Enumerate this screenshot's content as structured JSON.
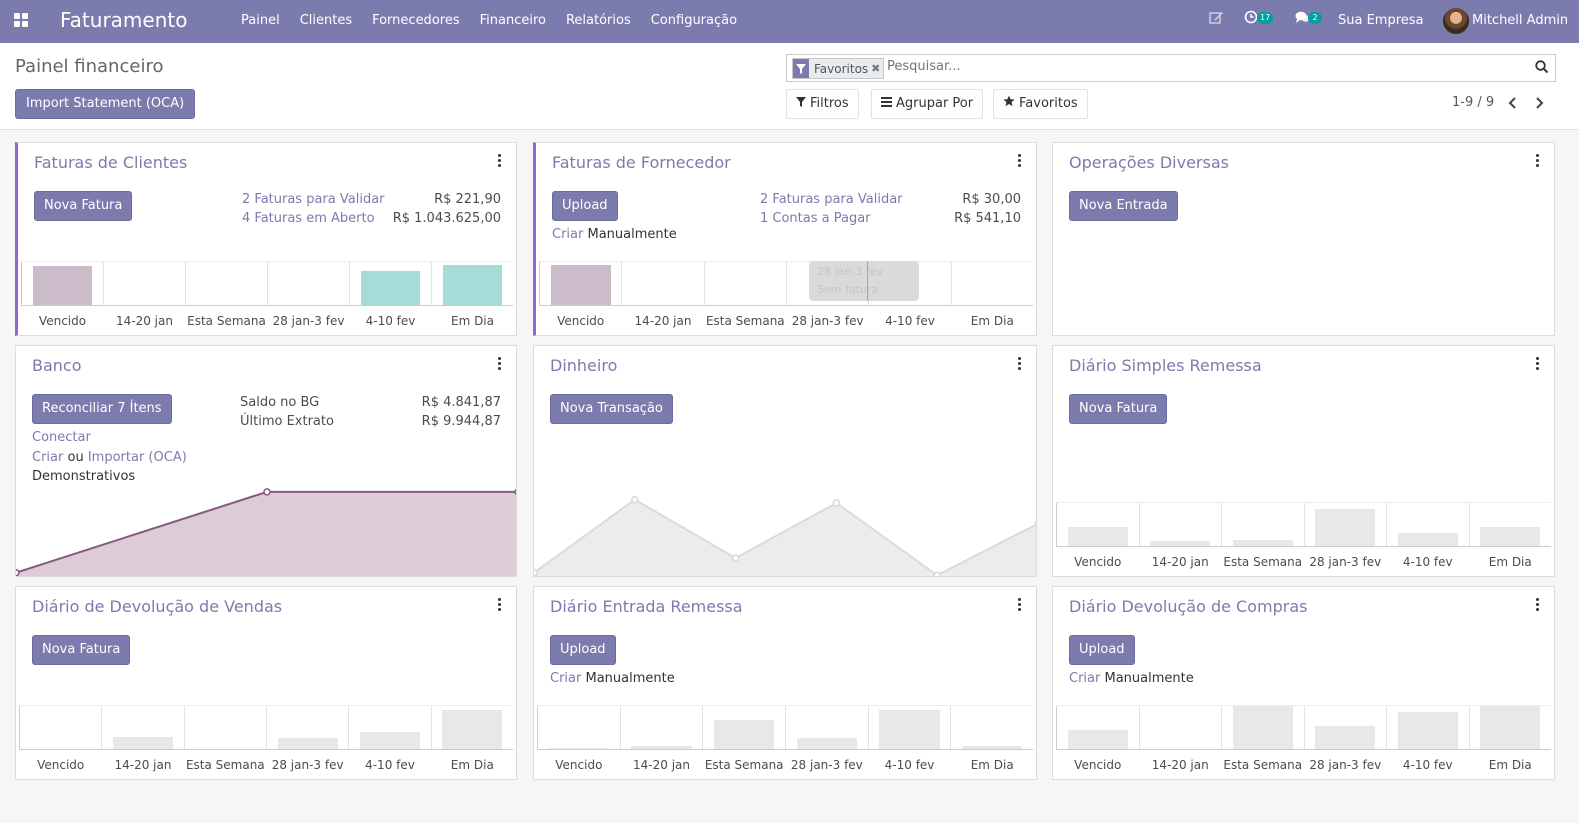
{
  "navbar": {
    "app_title": "Faturamento",
    "menu": [
      "Painel",
      "Clientes",
      "Fornecedores",
      "Financeiro",
      "Relatórios",
      "Configuração"
    ],
    "activity_count": "17",
    "messages_count": "2",
    "company": "Sua Empresa",
    "user": "Mitchell Admin"
  },
  "control_panel": {
    "title": "Painel financeiro",
    "import_button": "Import Statement (OCA)",
    "search_facet": "Favoritos",
    "search_placeholder": "Pesquisar...",
    "filters_label": "Filtros",
    "group_by_label": "Agrupar Por",
    "favorites_label": "Favoritos",
    "pager": "1-9 / 9"
  },
  "colors": {
    "brand": "#7c7bad",
    "accent_border": "#8e6ad0",
    "bar_past_due": "#ccbcc9",
    "bar_future": "#a6dcd8",
    "sample_bar": "#e8e8e8",
    "bank_line": "#875a7b",
    "bank_fill": "#dbccd8"
  },
  "icons": {
    "apps": "apps-grid-icon",
    "edit": "edit-icon",
    "activity": "clock-icon",
    "messages": "chat-icon",
    "filter": "filter-icon",
    "search": "search-icon",
    "bars": "bars-icon",
    "star": "star-icon",
    "prev": "chevron-left-icon",
    "next": "chevron-right-icon",
    "kebab": "kebab-icon"
  },
  "week_labels": [
    "Vencido",
    "14-20 jan",
    "Esta Semana",
    "28 jan-3 fev",
    "4-10 fev",
    "Em Dia"
  ],
  "cards": {
    "clientes": {
      "title": "Faturas de Clientes",
      "button": "Nova Fatura",
      "stats": [
        {
          "label": "2 Faturas para Validar",
          "value": "R$ 221,90"
        },
        {
          "label": "4 Faturas em Aberto",
          "value": "R$ 1.043.625,00"
        }
      ],
      "bar_levels": [
        0.9,
        0,
        0,
        0,
        0.79,
        0.93
      ]
    },
    "fornecedor": {
      "title": "Faturas de Fornecedor",
      "button": "Upload",
      "stats": [
        {
          "label": "2 Faturas para Validar",
          "value": "R$ 30,00"
        },
        {
          "label": "1 Contas a Pagar",
          "value": "R$ 541,10"
        }
      ],
      "create_link": "Criar",
      "create_text": "Manualmente",
      "bar_levels": [
        0.93,
        0,
        0,
        0,
        0,
        0
      ],
      "tooltip_line1": "28 jan-3 fev",
      "tooltip_line2": "Sem fatura"
    },
    "diversas": {
      "title": "Operações Diversas",
      "button": "Nova Entrada"
    },
    "banco": {
      "title": "Banco",
      "button": "Reconciliar 7 Ítens",
      "stats": [
        {
          "label": "Saldo no BG",
          "value": "R$ 4.841,87"
        },
        {
          "label": "Último Extrato",
          "value": "R$ 9.944,87"
        }
      ],
      "connect_link": "Conectar",
      "create_link": "Criar",
      "or_text": "ou",
      "import_link": "Importar (OCA)",
      "statements_text": "Demonstrativos",
      "line_levels": [
        0.05,
        0.99,
        0.99
      ]
    },
    "dinheiro": {
      "title": "Dinheiro",
      "button": "Nova Transação",
      "line_levels": [
        0.05,
        0.9,
        0.22,
        0.86,
        0.02,
        0.62
      ]
    },
    "simples_remessa": {
      "title": "Diário Simples Remessa",
      "button": "Nova Fatura",
      "bar_levels": [
        0.45,
        0.13,
        0.17,
        0.86,
        0.32,
        0.45
      ]
    },
    "devolucao_vendas": {
      "title": "Diário de Devolução de Vendas",
      "button": "Nova Fatura",
      "bar_levels": [
        0,
        0.3,
        0,
        0.28,
        0.4,
        0.9
      ]
    },
    "entrada_remessa": {
      "title": "Diário Entrada Remessa",
      "button": "Upload",
      "create_link": "Criar",
      "create_text": "Manualmente",
      "bar_levels": [
        0.04,
        0.1,
        0.68,
        0.28,
        0.9,
        0.1
      ]
    },
    "devolucao_compras": {
      "title": "Diário Devolução de Compras",
      "button": "Upload",
      "create_link": "Criar",
      "create_text": "Manualmente",
      "bar_levels": [
        0.45,
        0,
        1.0,
        0.55,
        0.86,
        1.0
      ]
    }
  }
}
